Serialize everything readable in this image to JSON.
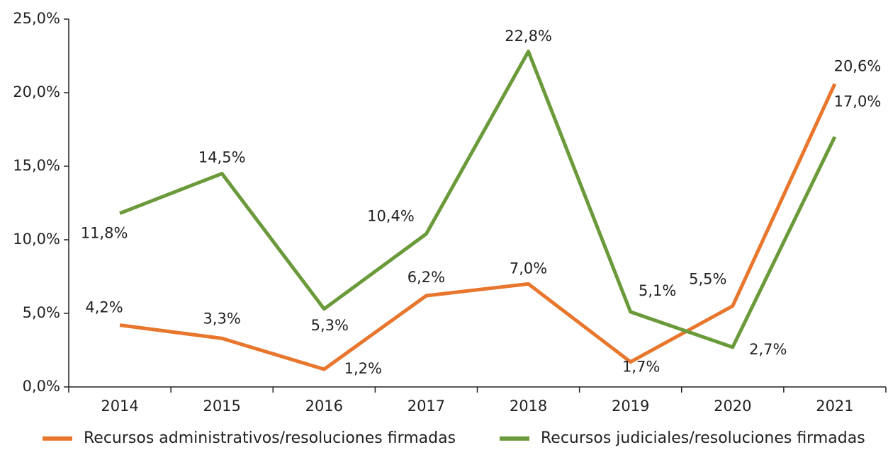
{
  "chart_data": {
    "type": "line",
    "categories": [
      "2014",
      "2015",
      "2016",
      "2017",
      "2018",
      "2019",
      "2020",
      "2021"
    ],
    "series": [
      {
        "name": "Recursos administrativos/resoluciones firmadas",
        "color": "#e8762d",
        "values": [
          4.2,
          3.3,
          1.2,
          6.2,
          7.0,
          1.7,
          5.5,
          20.6
        ],
        "value_labels": [
          "4,2%",
          "3,3%",
          "1,2%",
          "6,2%",
          "7,0%",
          "1,7%",
          "5,5%",
          "20,6%"
        ]
      },
      {
        "name": "Recursos judiciales/resoluciones firmadas",
        "color": "#6b9a3a",
        "values": [
          11.8,
          14.5,
          5.3,
          10.4,
          22.8,
          5.1,
          2.7,
          17.0
        ],
        "value_labels": [
          "11,8%",
          "14,5%",
          "5,3%",
          "10,4%",
          "22,8%",
          "5,1%",
          "2,7%",
          "17,0%"
        ]
      }
    ],
    "ylim": [
      0,
      25
    ],
    "yticks": [
      {
        "value": 0,
        "label": "0,0%"
      },
      {
        "value": 5,
        "label": "5,0%"
      },
      {
        "value": 10,
        "label": "10,0%"
      },
      {
        "value": 15,
        "label": "15,0%"
      },
      {
        "value": 20,
        "label": "20,0%"
      },
      {
        "value": 25,
        "label": "25,0%"
      }
    ],
    "grid": false,
    "legend": "bottom"
  }
}
